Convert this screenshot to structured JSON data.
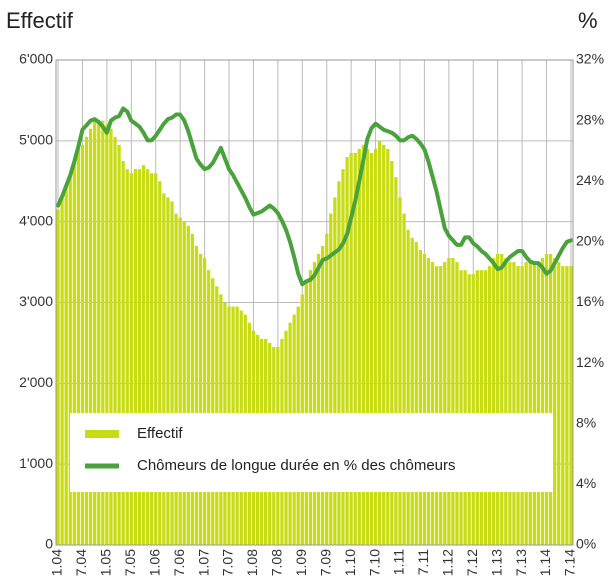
{
  "chart_data": {
    "type": "bar",
    "y_title": "Effectif",
    "y2_title": "%",
    "grid": true,
    "legend": "lower center",
    "categories": [
      "1.04",
      null,
      null,
      null,
      null,
      null,
      "7.04",
      null,
      null,
      null,
      null,
      null,
      "1.05",
      null,
      null,
      null,
      null,
      null,
      "7.05",
      null,
      null,
      null,
      null,
      null,
      "1.06",
      null,
      null,
      null,
      null,
      null,
      "7.06",
      null,
      null,
      null,
      null,
      null,
      "1.07",
      null,
      null,
      null,
      null,
      null,
      "7.07",
      null,
      null,
      null,
      null,
      null,
      "1.08",
      null,
      null,
      null,
      null,
      null,
      "7.08",
      null,
      null,
      null,
      null,
      null,
      "1.09",
      null,
      null,
      null,
      null,
      null,
      "7.09",
      null,
      null,
      null,
      null,
      null,
      "1.10",
      null,
      null,
      null,
      null,
      null,
      "7.10",
      null,
      null,
      null,
      null,
      null,
      "1.11",
      null,
      null,
      null,
      null,
      null,
      "7.11",
      null,
      null,
      null,
      null,
      null,
      "1.12",
      null,
      null,
      null,
      null,
      null,
      "7.12",
      null,
      null,
      null,
      null,
      null,
      "1.13",
      null,
      null,
      null,
      null,
      null,
      "7.13",
      null,
      null,
      null,
      null,
      null,
      "1.14",
      null,
      null,
      null,
      null,
      null,
      "7.14"
    ],
    "series": [
      {
        "name": "Effectif",
        "type": "bar",
        "color": "#c8dc14",
        "values": [
          4150,
          4300,
          4450,
          4600,
          4750,
          4900,
          4950,
          5050,
          5150,
          5250,
          5250,
          5250,
          5200,
          5150,
          5050,
          4950,
          4750,
          4650,
          4600,
          4650,
          4650,
          4700,
          4650,
          4600,
          4600,
          4500,
          4350,
          4300,
          4250,
          4100,
          4050,
          4000,
          3950,
          3850,
          3700,
          3600,
          3550,
          3400,
          3300,
          3200,
          3100,
          3000,
          2950,
          2950,
          2950,
          2900,
          2850,
          2750,
          2650,
          2600,
          2550,
          2550,
          2500,
          2450,
          2450,
          2550,
          2650,
          2750,
          2850,
          2950,
          3100,
          3250,
          3400,
          3500,
          3600,
          3700,
          3850,
          4100,
          4300,
          4500,
          4650,
          4800,
          4850,
          4850,
          4900,
          4950,
          4900,
          4850,
          4900,
          5000,
          4950,
          4900,
          4750,
          4550,
          4300,
          4100,
          3900,
          3800,
          3750,
          3650,
          3600,
          3550,
          3500,
          3450,
          3450,
          3500,
          3550,
          3550,
          3500,
          3400,
          3400,
          3350,
          3350,
          3400,
          3400,
          3400,
          3450,
          3550,
          3600,
          3600,
          3550,
          3500,
          3500,
          3450,
          3450,
          3500,
          3500,
          3500,
          3500,
          3550,
          3600,
          3600,
          3550,
          3500,
          3450,
          3450,
          3450
        ]
      },
      {
        "name": "Chômeurs de longue durée en % des chômeurs",
        "type": "line",
        "axis": "y2",
        "color": "#4aa23c",
        "values": [
          22.4,
          23.0,
          23.7,
          24.4,
          25.3,
          26.3,
          27.4,
          27.7,
          28.0,
          28.1,
          27.9,
          27.6,
          27.2,
          28.0,
          28.2,
          28.3,
          28.8,
          28.6,
          28.0,
          27.8,
          27.6,
          27.2,
          26.7,
          26.7,
          27.0,
          27.4,
          27.8,
          28.1,
          28.2,
          28.4,
          28.4,
          28.0,
          27.3,
          26.4,
          25.5,
          25.1,
          24.8,
          24.9,
          25.2,
          25.7,
          26.2,
          25.5,
          24.8,
          24.4,
          23.9,
          23.4,
          22.9,
          22.3,
          21.8,
          21.9,
          22.0,
          22.2,
          22.4,
          22.2,
          21.9,
          21.4,
          20.8,
          20.0,
          19.0,
          17.9,
          17.2,
          17.4,
          17.5,
          17.8,
          18.3,
          18.8,
          18.9,
          19.1,
          19.3,
          19.5,
          19.9,
          20.5,
          21.6,
          22.7,
          24.0,
          25.4,
          26.8,
          27.5,
          27.8,
          27.6,
          27.4,
          27.3,
          27.2,
          27.0,
          26.7,
          26.7,
          26.9,
          27.0,
          26.8,
          26.5,
          26.1,
          25.3,
          24.3,
          23.3,
          22.1,
          20.9,
          20.4,
          20.1,
          19.8,
          19.8,
          20.3,
          20.3,
          19.9,
          19.7,
          19.4,
          19.2,
          18.9,
          18.6,
          18.2,
          18.3,
          18.7,
          19.0,
          19.2,
          19.4,
          19.4,
          19.0,
          18.7,
          18.6,
          18.6,
          18.3,
          17.9,
          18.1,
          18.6,
          19.1,
          19.6,
          20.0,
          20.1
        ]
      }
    ],
    "ylim": [
      0,
      6000
    ],
    "yticks": [
      0,
      {
        "value": 1000,
        "label": "1'000"
      },
      {
        "value": 2000,
        "label": "2'000"
      },
      {
        "value": 3000,
        "label": "3'000"
      },
      {
        "value": 4000,
        "label": "4'000"
      },
      {
        "value": 5000,
        "label": "5'000"
      },
      {
        "value": 6000,
        "label": "6'000"
      }
    ],
    "y2lim": [
      0,
      32
    ],
    "y2ticks": [
      {
        "value": 0,
        "label": "0%"
      },
      {
        "value": 4,
        "label": "4%"
      },
      {
        "value": 8,
        "label": "8%"
      },
      {
        "value": 12,
        "label": "12%"
      },
      {
        "value": 16,
        "label": "16%"
      },
      {
        "value": 20,
        "label": "20%"
      },
      {
        "value": 24,
        "label": "24%"
      },
      {
        "value": 28,
        "label": "28%"
      },
      {
        "value": 32,
        "label": "32%"
      }
    ]
  }
}
